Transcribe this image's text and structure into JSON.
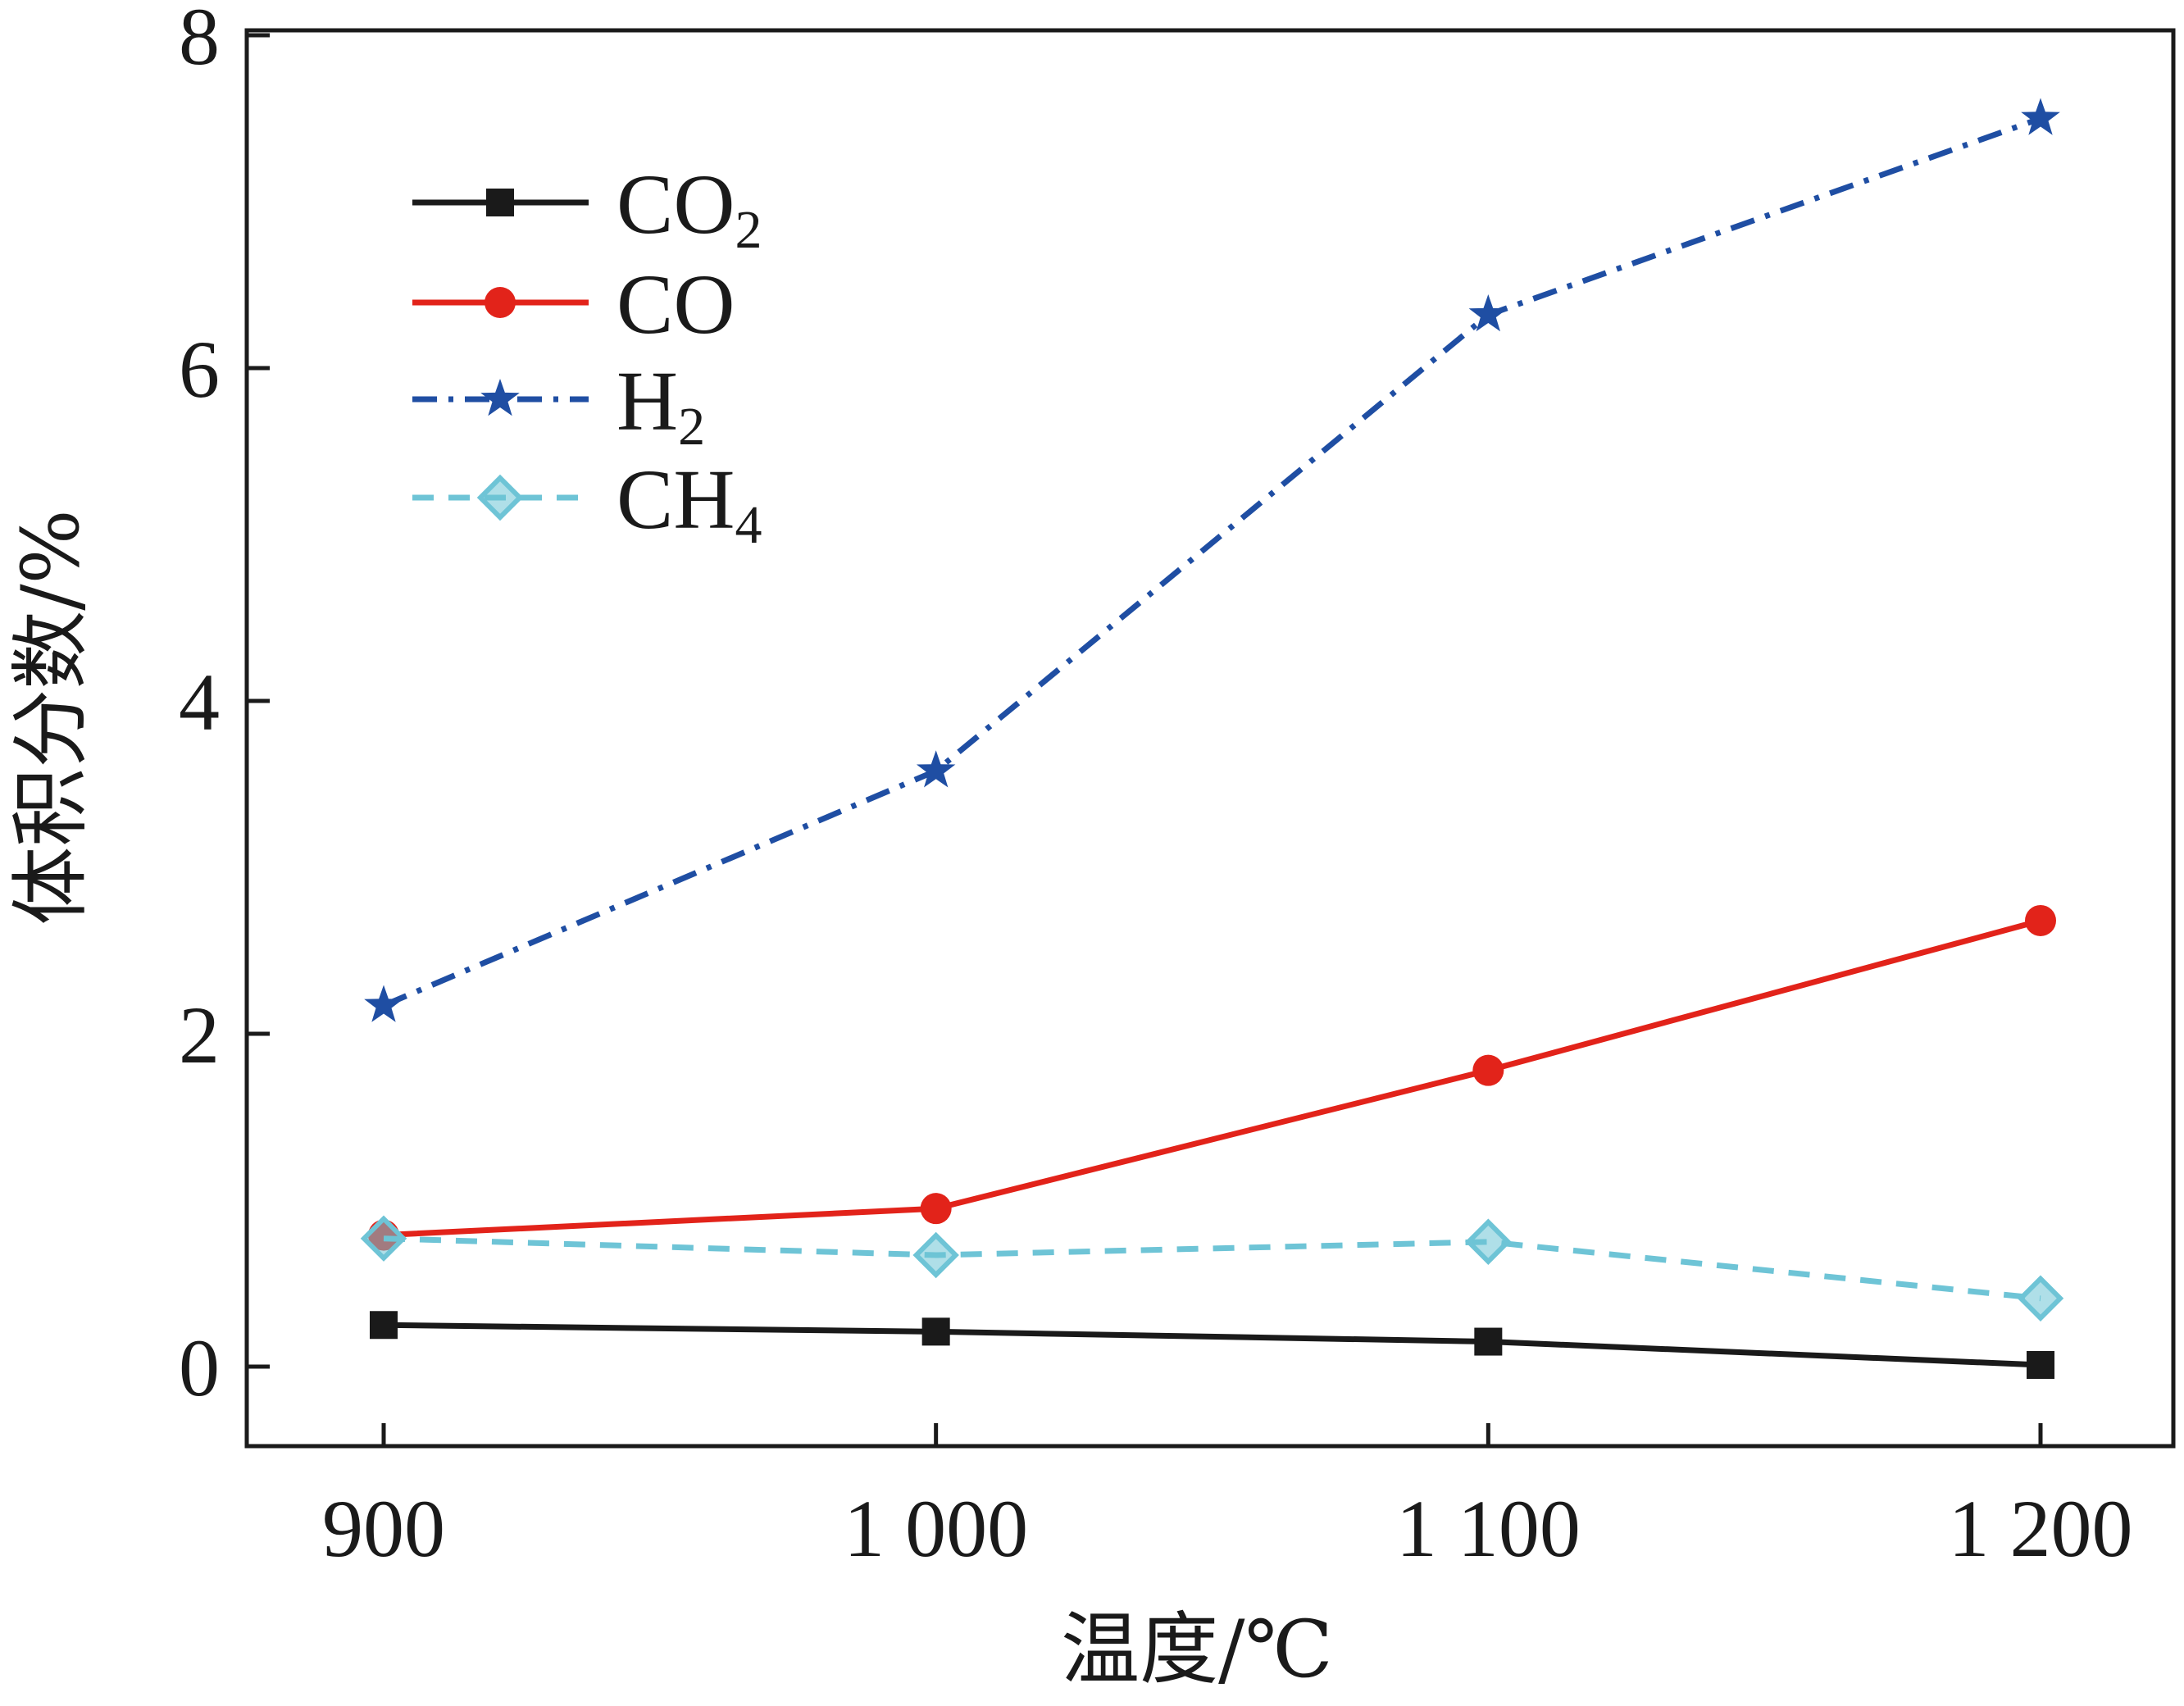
{
  "chart_data": {
    "type": "line",
    "title": "",
    "xlabel": "温度/℃",
    "ylabel": "体积分数/%",
    "x": [
      900,
      1000,
      1100,
      1200
    ],
    "x_tick_labels": [
      "900",
      "1 000",
      "1 100",
      "1 200"
    ],
    "xlim": [
      875,
      1225
    ],
    "ylim": [
      -0.5,
      8
    ],
    "y_ticks": [
      0,
      2,
      4,
      6,
      8
    ],
    "y_tick_labels": [
      "0",
      "2",
      "4",
      "6",
      "8"
    ],
    "grid": false,
    "legend_position": "top-left",
    "series": [
      {
        "name": "CO2",
        "label_base": "CO",
        "label_sub": "2",
        "color": "#1a1a1a",
        "dash": "solid",
        "marker": "square",
        "values": [
          0.25,
          0.21,
          0.15,
          0.01
        ]
      },
      {
        "name": "CO",
        "label_base": "CO",
        "label_sub": "",
        "color": "#e2231a",
        "dash": "solid",
        "marker": "circle",
        "values": [
          0.79,
          0.95,
          1.78,
          2.68
        ]
      },
      {
        "name": "H2",
        "label_base": "H",
        "label_sub": "2",
        "color": "#1f4ea3",
        "dash": "dashdot",
        "marker": "star",
        "values": [
          2.17,
          3.58,
          6.32,
          7.5
        ]
      },
      {
        "name": "CH4",
        "label_base": "CH",
        "label_sub": "4",
        "color": "#6ec4d6",
        "dash": "dashed",
        "marker": "diamond",
        "values": [
          0.77,
          0.67,
          0.75,
          0.41
        ]
      }
    ]
  }
}
